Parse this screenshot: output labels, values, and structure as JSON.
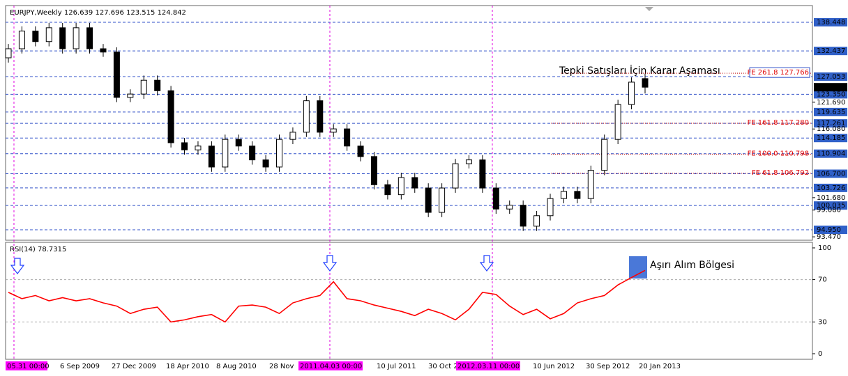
{
  "chart_data": {
    "type": "candlestick",
    "symbol": "EURJPY,Weekly",
    "open": [
      131.0,
      132.9,
      136.6,
      134.4,
      137.3,
      132.9,
      137.3,
      132.9,
      132.2,
      122.7,
      123.4,
      126.3,
      124.1,
      113.2,
      111.7,
      112.5,
      108.1,
      113.9,
      112.5,
      109.6,
      108.1,
      113.9,
      115.4,
      122.0,
      115.4,
      116.1,
      112.5,
      110.3,
      104.4,
      102.3,
      105.9,
      103.7,
      98.6,
      103.7,
      108.8,
      109.6,
      103.7,
      99.3,
      100.1,
      95.7,
      97.9,
      101.5,
      103.0,
      101.5,
      107.4,
      113.9,
      121.2,
      126.639
    ],
    "high": [
      133.9,
      137.6,
      137.6,
      138.3,
      138.3,
      138.3,
      138.3,
      133.9,
      133.2,
      124.4,
      127.3,
      127.3,
      125.1,
      114.2,
      113.5,
      113.5,
      114.9,
      114.9,
      113.5,
      110.6,
      114.9,
      116.4,
      123.0,
      123.0,
      117.1,
      117.1,
      113.5,
      111.3,
      105.4,
      106.9,
      106.9,
      104.7,
      104.7,
      109.8,
      110.6,
      110.6,
      104.7,
      101.1,
      101.1,
      98.9,
      102.5,
      104.0,
      104.0,
      108.4,
      114.9,
      122.2,
      126.9,
      127.696
    ],
    "low": [
      130.0,
      131.9,
      133.4,
      133.4,
      131.9,
      131.9,
      131.9,
      131.2,
      121.7,
      121.7,
      122.4,
      123.1,
      112.2,
      110.7,
      110.7,
      107.1,
      107.1,
      111.5,
      108.6,
      107.1,
      107.1,
      112.9,
      114.4,
      114.4,
      114.4,
      111.5,
      109.3,
      103.4,
      101.3,
      101.3,
      102.7,
      97.6,
      97.6,
      102.7,
      107.8,
      102.7,
      98.3,
      98.3,
      94.7,
      94.7,
      96.9,
      100.5,
      100.5,
      100.5,
      106.4,
      112.9,
      120.2,
      123.515
    ],
    "close": [
      132.9,
      136.6,
      134.4,
      137.3,
      132.9,
      137.3,
      132.9,
      132.2,
      122.7,
      123.4,
      126.3,
      124.1,
      113.2,
      111.7,
      112.5,
      108.1,
      113.9,
      112.5,
      109.6,
      108.1,
      113.9,
      115.4,
      122.0,
      115.4,
      116.1,
      112.5,
      110.3,
      104.4,
      102.3,
      105.9,
      103.7,
      98.6,
      103.7,
      108.8,
      109.6,
      103.7,
      99.3,
      100.1,
      95.7,
      97.9,
      101.5,
      103.0,
      101.5,
      107.4,
      113.9,
      121.2,
      125.9,
      124.842
    ],
    "ylim": [
      92.76,
      141.95
    ],
    "price_levels": [
      138.448,
      132.437,
      127.053,
      123.35,
      119.635,
      117.261,
      114.185,
      110.904,
      106.7,
      103.726,
      100.035,
      94.95
    ],
    "price_level_labels": [
      "138.448",
      "132.437",
      "127.053",
      "123.350",
      "119.635",
      "117.261",
      "114.185",
      "110.904",
      "106.700",
      "103.726",
      "100.035",
      "94.950"
    ],
    "yticks": [
      {
        "value": 121.69,
        "label": "121.690"
      },
      {
        "value": 116.08,
        "label": "116.080"
      },
      {
        "value": 101.68,
        "label": "101.680"
      },
      {
        "value": 99.08,
        "label": "99.080"
      },
      {
        "value": 93.47,
        "label": "93.470"
      }
    ],
    "fe_levels": [
      {
        "name": "FE 261.8",
        "value": 127.766,
        "label": "127.766"
      },
      {
        "name": "FE 161.8",
        "value": 117.28,
        "label": "117.280"
      },
      {
        "name": "FE 100.0",
        "value": 110.798,
        "label": "110.798"
      },
      {
        "name": "FE 61.8",
        "value": 106.792,
        "label": "106.792"
      }
    ],
    "annotation": "Tepki Satışları İçin Karar Aşaması",
    "rsi": {
      "name": "RSI(14)",
      "color": "#ff0000",
      "values": [
        58,
        52,
        55,
        50,
        53,
        50,
        52,
        48,
        45,
        38,
        42,
        44,
        30,
        32,
        35,
        37,
        30,
        45,
        46,
        44,
        38,
        48,
        52,
        55,
        68,
        52,
        50,
        46,
        43,
        40,
        36,
        42,
        38,
        32,
        42,
        58,
        56,
        45,
        37,
        42,
        33,
        38,
        48,
        52,
        55,
        65,
        72,
        78.7315
      ],
      "ylim": [
        0,
        100
      ],
      "yticks": [
        100,
        70,
        30,
        0
      ],
      "levels": [
        70,
        30
      ],
      "annotation": "Aşırı Alım Bölgesi"
    },
    "x_labels": [
      "05.31 00:00",
      "6 Sep 2009",
      "27 Dec 2009",
      "18 Apr 2010",
      "8 Aug 2010",
      "28 Nov",
      "2011.04.03 00:00",
      "10 Jul 2011",
      "30 Oct 2",
      "2012.03.11 00:00",
      "10 Jun 2012",
      "30 Sep 2012",
      "20 Jan 2013"
    ]
  }
}
